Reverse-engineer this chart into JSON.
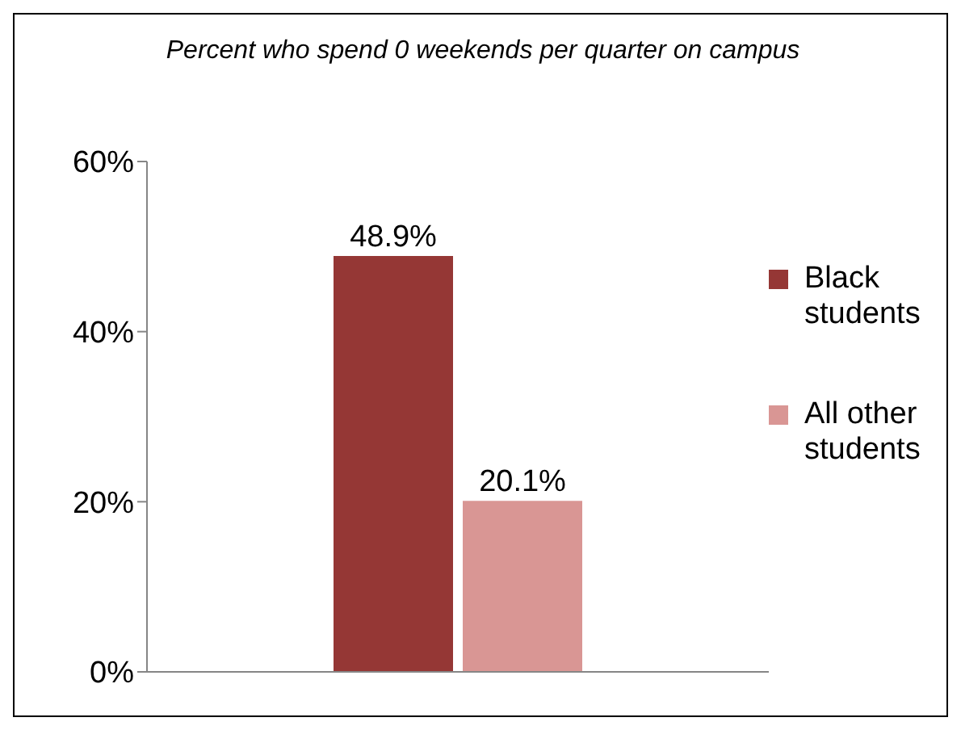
{
  "chart_data": {
    "type": "bar",
    "title": "Percent who spend 0 weekends per quarter on campus",
    "categories": [
      null
    ],
    "series": [
      {
        "name": "Black students",
        "color": "#953735",
        "values": [
          48.9
        ],
        "value_labels": [
          "48.9%"
        ]
      },
      {
        "name": "All other students",
        "color": "#d99694",
        "values": [
          20.1
        ],
        "value_labels": [
          "20.1%"
        ]
      }
    ],
    "ylim": [
      0,
      60
    ],
    "yticks": [
      {
        "value": 0,
        "label": "0%"
      },
      {
        "value": 20,
        "label": "20%"
      },
      {
        "value": 40,
        "label": "40%"
      },
      {
        "value": 60,
        "label": "60%"
      }
    ],
    "grid": false,
    "legend": "right"
  }
}
